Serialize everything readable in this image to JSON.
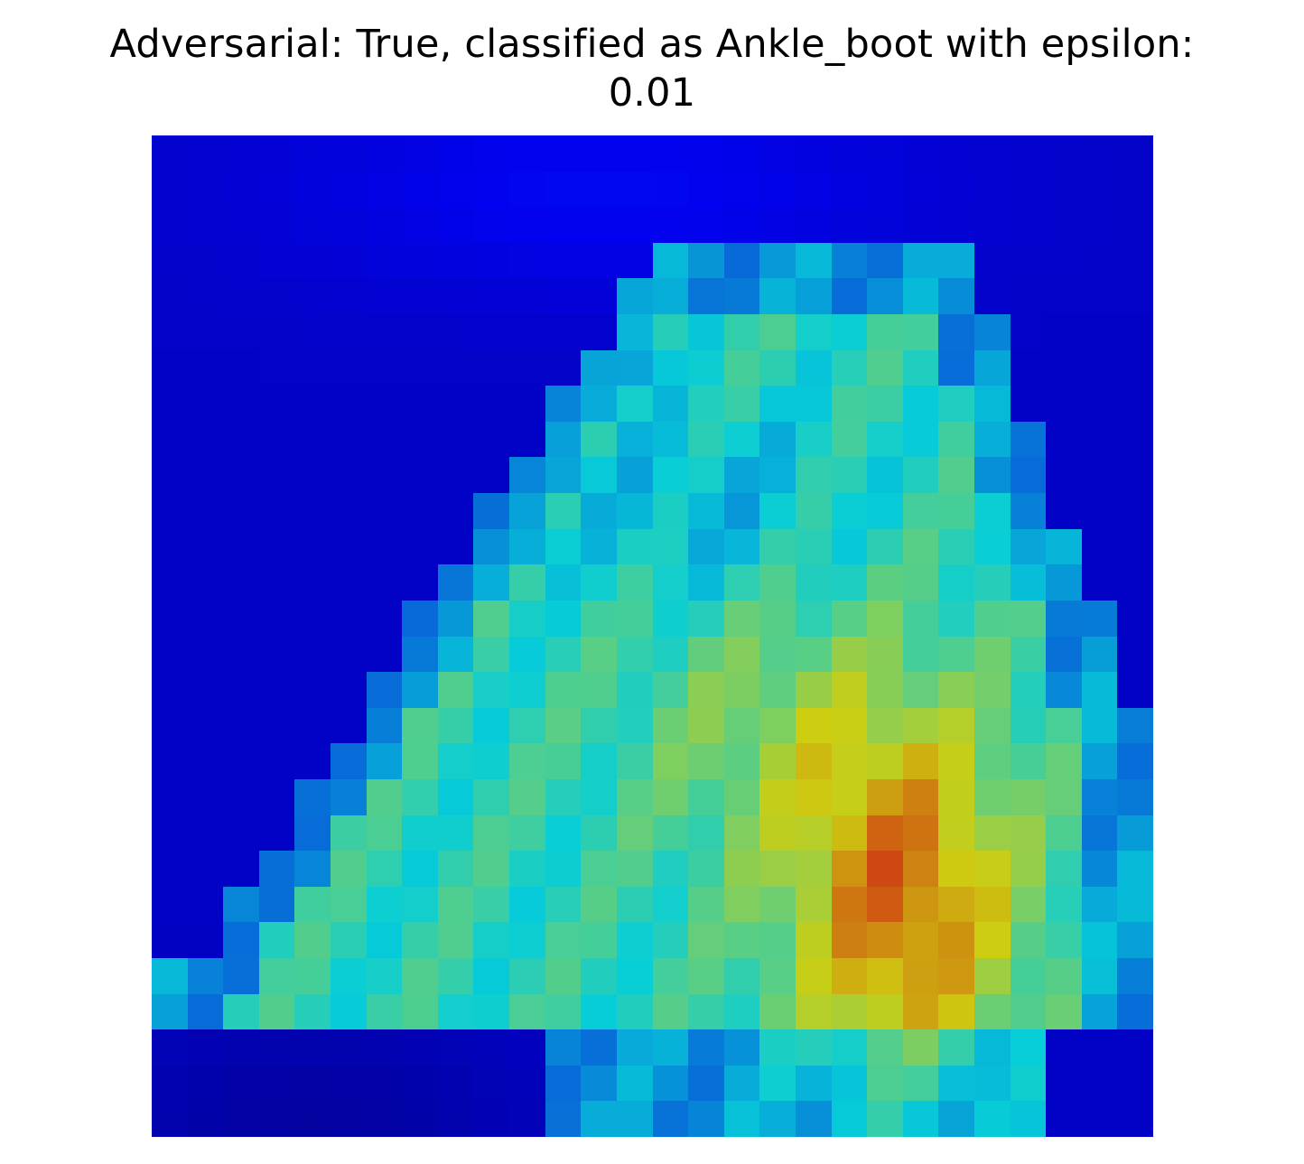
{
  "title": {
    "line1": "Adversarial: True, classified as Ankle_boot with epsilon:",
    "line2": "0.01"
  },
  "image": {
    "rows": 28,
    "cols": 28
  }
}
